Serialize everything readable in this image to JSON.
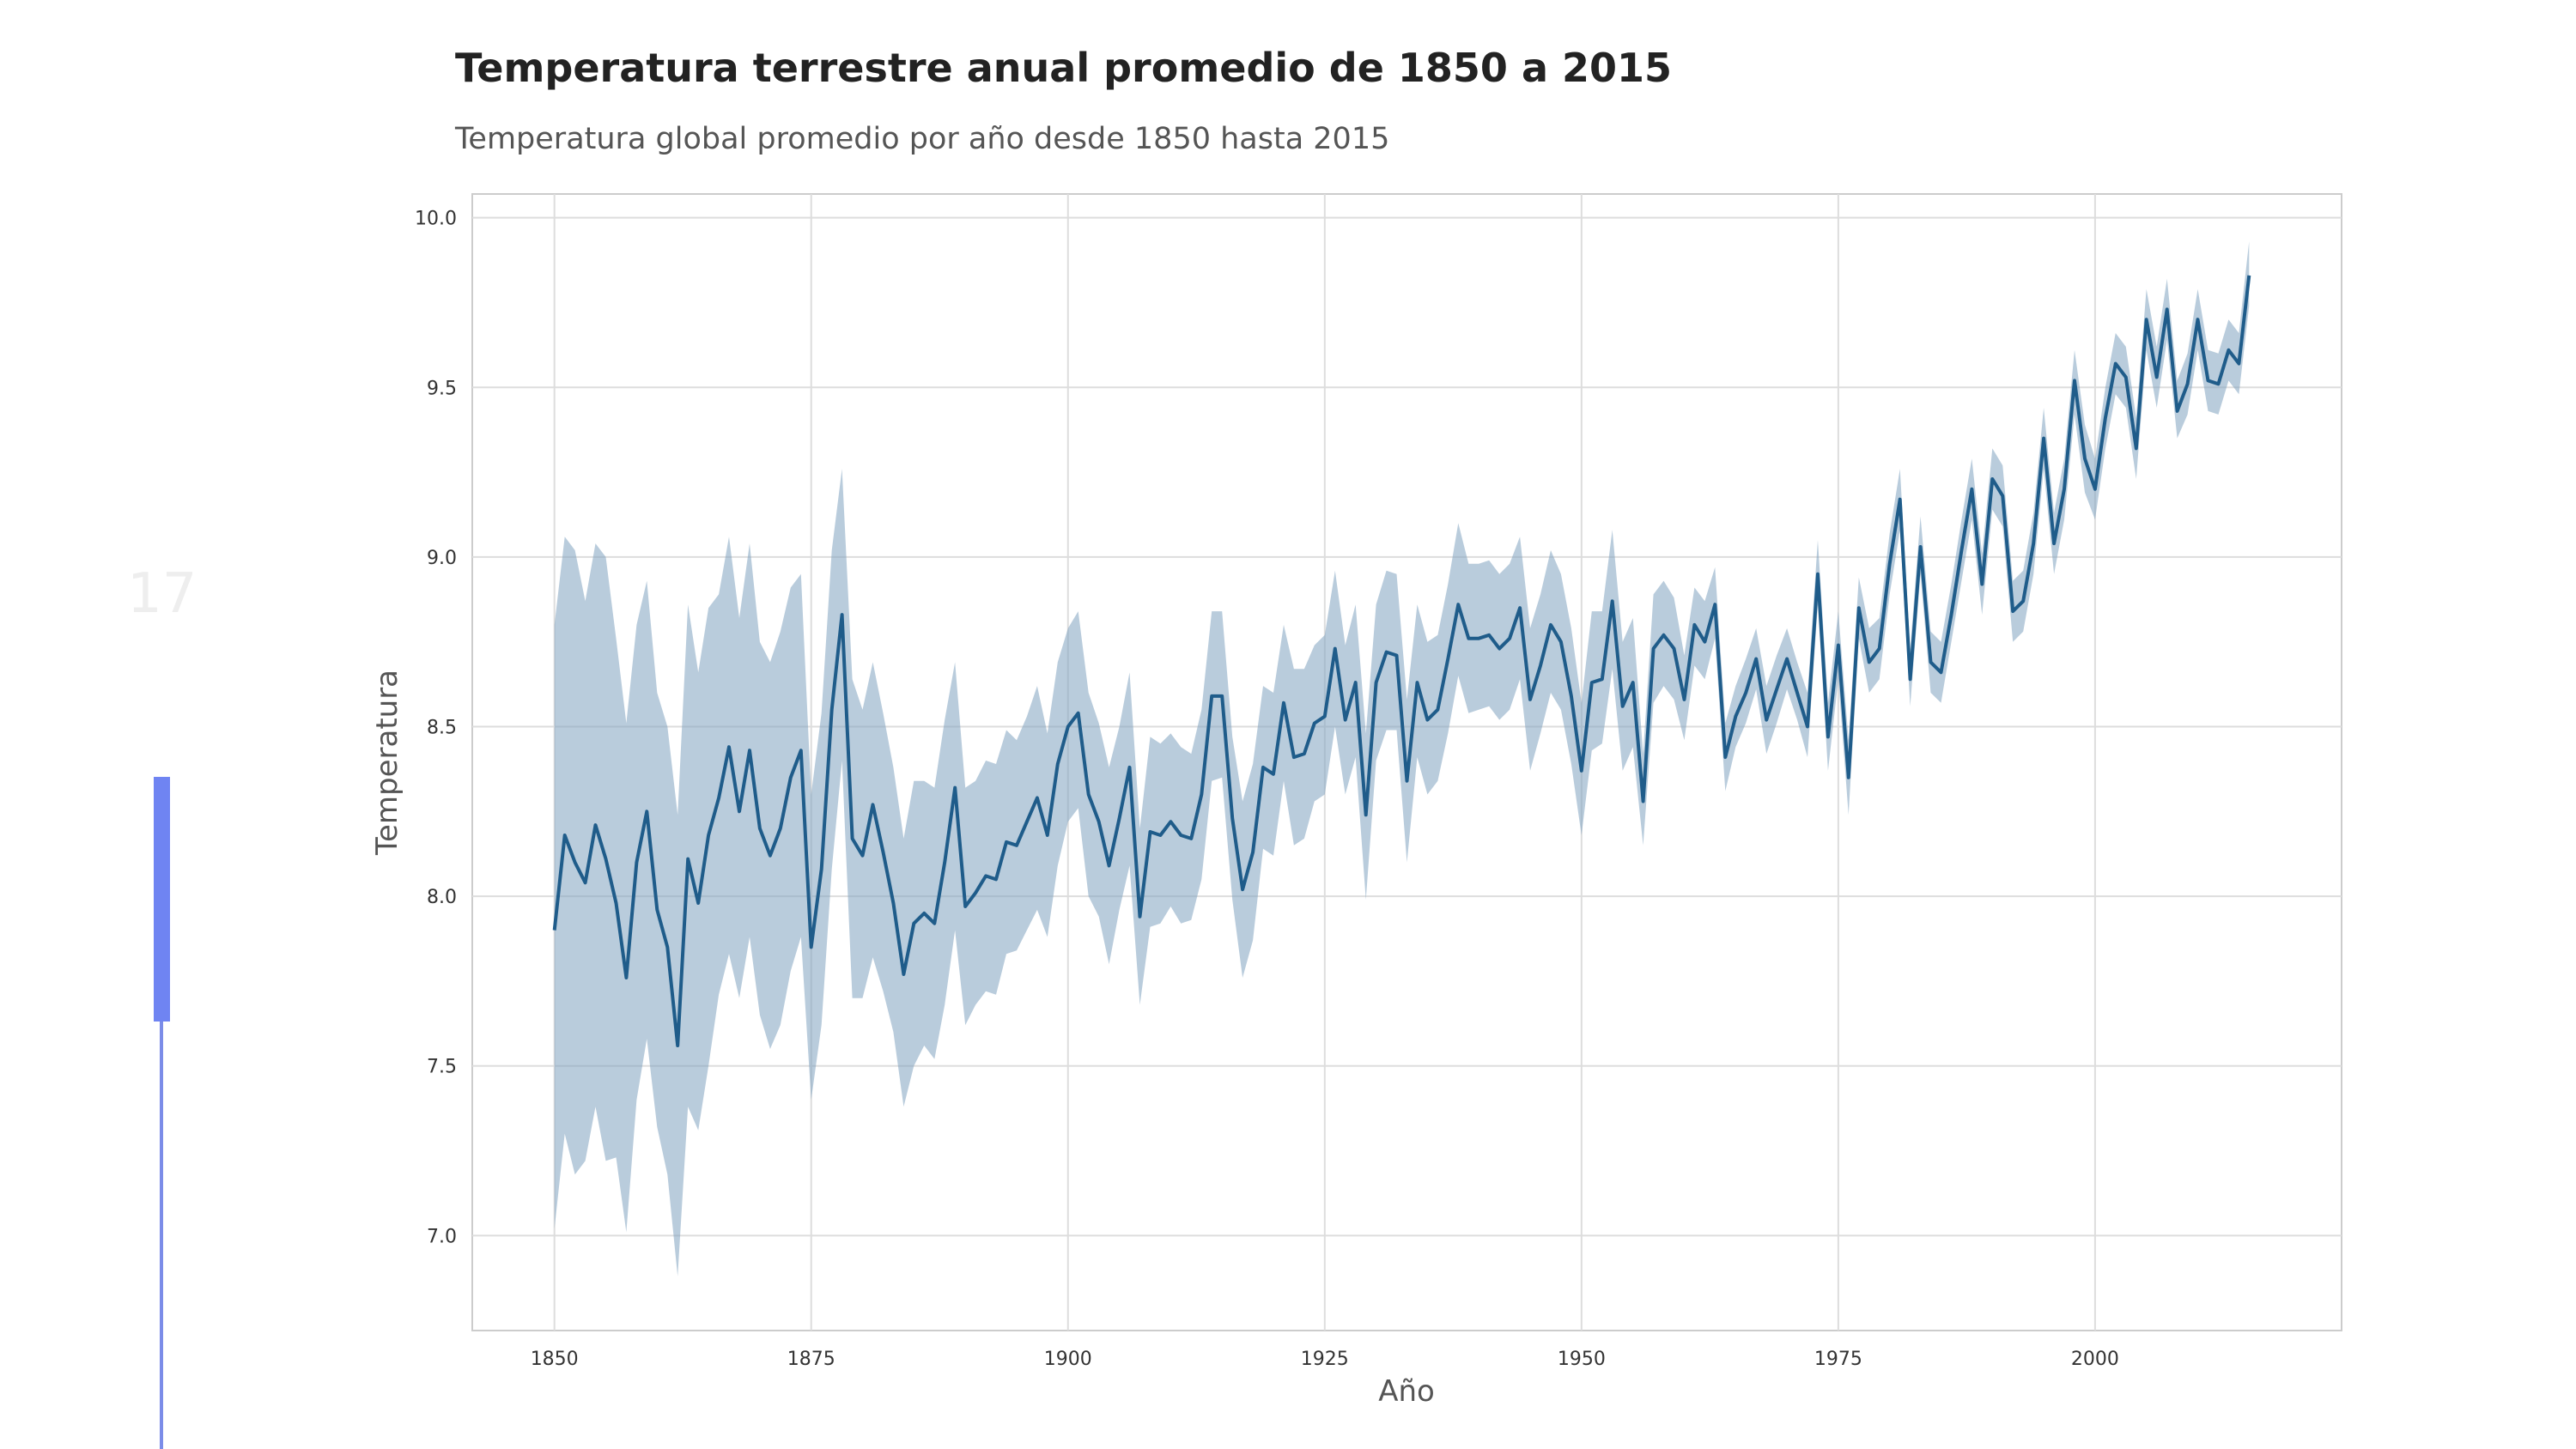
{
  "page_number": "17",
  "progress": {
    "fraction": 0.19
  },
  "colors": {
    "line": "#1f5c8a",
    "band": "#7fa2bf",
    "grid": "#dddddd",
    "frame": "#cccccc",
    "progress": "#6f84f2"
  },
  "chart_data": {
    "type": "line",
    "title": "Temperatura terrestre anual promedio de 1850 a 2015",
    "subtitle": "Temperatura global promedio por año desde 1850 hasta 2015",
    "xlabel": "Año",
    "ylabel": "Temperatura",
    "xlim": [
      1842,
      2024
    ],
    "ylim": [
      6.72,
      10.07
    ],
    "x_ticks": [
      1850,
      1875,
      1900,
      1925,
      1950,
      1975,
      2000
    ],
    "y_ticks": [
      "7.0",
      "7.5",
      "8.0",
      "8.5",
      "9.0",
      "9.5",
      "10.0"
    ],
    "grid": true,
    "confidence_band": true,
    "x": [
      1850,
      1851,
      1852,
      1853,
      1854,
      1855,
      1856,
      1857,
      1858,
      1859,
      1860,
      1861,
      1862,
      1863,
      1864,
      1865,
      1866,
      1867,
      1868,
      1869,
      1870,
      1871,
      1872,
      1873,
      1874,
      1875,
      1876,
      1877,
      1878,
      1879,
      1880,
      1881,
      1882,
      1883,
      1884,
      1885,
      1886,
      1887,
      1888,
      1889,
      1890,
      1891,
      1892,
      1893,
      1894,
      1895,
      1896,
      1897,
      1898,
      1899,
      1900,
      1901,
      1902,
      1903,
      1904,
      1905,
      1906,
      1907,
      1908,
      1909,
      1910,
      1911,
      1912,
      1913,
      1914,
      1915,
      1916,
      1917,
      1918,
      1919,
      1920,
      1921,
      1922,
      1923,
      1924,
      1925,
      1926,
      1927,
      1928,
      1929,
      1930,
      1931,
      1932,
      1933,
      1934,
      1935,
      1936,
      1937,
      1938,
      1939,
      1940,
      1941,
      1942,
      1943,
      1944,
      1945,
      1946,
      1947,
      1948,
      1949,
      1950,
      1951,
      1952,
      1953,
      1954,
      1955,
      1956,
      1957,
      1958,
      1959,
      1960,
      1961,
      1962,
      1963,
      1964,
      1965,
      1966,
      1967,
      1968,
      1969,
      1970,
      1971,
      1972,
      1973,
      1974,
      1975,
      1976,
      1977,
      1978,
      1979,
      1980,
      1981,
      1982,
      1983,
      1984,
      1985,
      1986,
      1987,
      1988,
      1989,
      1990,
      1991,
      1992,
      1993,
      1994,
      1995,
      1996,
      1997,
      1998,
      1999,
      2000,
      2001,
      2002,
      2003,
      2004,
      2005,
      2006,
      2007,
      2008,
      2009,
      2010,
      2011,
      2012,
      2013,
      2014,
      2015
    ],
    "series": [
      {
        "values": [
          7.9,
          8.18,
          8.1,
          8.04,
          8.21,
          8.11,
          7.98,
          7.76,
          8.1,
          8.25,
          7.96,
          7.85,
          7.56,
          8.11,
          7.98,
          8.18,
          8.29,
          8.44,
          8.25,
          8.43,
          8.2,
          8.12,
          8.2,
          8.35,
          8.43,
          7.85,
          8.08,
          8.55,
          8.83,
          8.17,
          8.12,
          8.27,
          8.13,
          7.98,
          7.77,
          7.92,
          7.95,
          7.92,
          8.1,
          8.32,
          7.97,
          8.01,
          8.06,
          8.05,
          8.16,
          8.15,
          8.22,
          8.29,
          8.18,
          8.39,
          8.5,
          8.54,
          8.3,
          8.22,
          8.09,
          8.23,
          8.38,
          7.94,
          8.19,
          8.18,
          8.22,
          8.18,
          8.17,
          8.3,
          8.59,
          8.59,
          8.23,
          8.02,
          8.13,
          8.38,
          8.36,
          8.57,
          8.41,
          8.42,
          8.51,
          8.53,
          8.73,
          8.52,
          8.63,
          8.24,
          8.63,
          8.72,
          8.71,
          8.34,
          8.63,
          8.52,
          8.55,
          8.7,
          8.86,
          8.76,
          8.76,
          8.77,
          8.73,
          8.76,
          8.85,
          8.58,
          8.68,
          8.8,
          8.75,
          8.59,
          8.37,
          8.63,
          8.64,
          8.87,
          8.56,
          8.63,
          8.28,
          8.73,
          8.77,
          8.73,
          8.58,
          8.8,
          8.75,
          8.86,
          8.41,
          8.53,
          8.6,
          8.7,
          8.52,
          8.61,
          8.7,
          8.6,
          8.5,
          8.95,
          8.47,
          8.74,
          8.35,
          8.85,
          8.69,
          8.73,
          8.98,
          9.17,
          8.64,
          9.03,
          8.69,
          8.66,
          8.83,
          9.02,
          9.2,
          8.92,
          9.23,
          9.18,
          8.84,
          8.87,
          9.04,
          9.35,
          9.04,
          9.2,
          9.52,
          9.29,
          9.2,
          9.41,
          9.57,
          9.53,
          9.32,
          9.7,
          9.53,
          9.73,
          9.43,
          9.51,
          9.7,
          9.52,
          9.51,
          9.61,
          9.57,
          9.83
        ],
        "lower": [
          7.02,
          7.3,
          7.18,
          7.22,
          7.38,
          7.22,
          7.23,
          7.01,
          7.4,
          7.58,
          7.32,
          7.18,
          6.88,
          7.38,
          7.31,
          7.5,
          7.71,
          7.83,
          7.7,
          7.88,
          7.65,
          7.55,
          7.62,
          7.78,
          7.88,
          7.4,
          7.62,
          8.08,
          8.4,
          7.7,
          7.7,
          7.82,
          7.72,
          7.6,
          7.38,
          7.5,
          7.56,
          7.52,
          7.68,
          7.9,
          7.62,
          7.68,
          7.72,
          7.71,
          7.83,
          7.84,
          7.9,
          7.96,
          7.88,
          8.09,
          8.22,
          8.26,
          8.0,
          7.94,
          7.8,
          7.96,
          8.09,
          7.68,
          7.91,
          7.92,
          7.97,
          7.92,
          7.93,
          8.05,
          8.34,
          8.35,
          7.99,
          7.76,
          7.87,
          8.14,
          8.12,
          8.34,
          8.15,
          8.17,
          8.28,
          8.3,
          8.5,
          8.3,
          8.41,
          7.99,
          8.4,
          8.49,
          8.49,
          8.1,
          8.41,
          8.3,
          8.34,
          8.48,
          8.65,
          8.54,
          8.55,
          8.56,
          8.52,
          8.55,
          8.64,
          8.37,
          8.48,
          8.6,
          8.55,
          8.39,
          8.18,
          8.43,
          8.45,
          8.67,
          8.37,
          8.44,
          8.15,
          8.57,
          8.62,
          8.58,
          8.46,
          8.68,
          8.64,
          8.76,
          8.31,
          8.44,
          8.51,
          8.61,
          8.42,
          8.51,
          8.61,
          8.52,
          8.41,
          8.86,
          8.37,
          8.64,
          8.24,
          8.76,
          8.6,
          8.64,
          8.89,
          9.08,
          8.56,
          8.95,
          8.6,
          8.57,
          8.75,
          8.93,
          9.11,
          8.83,
          9.14,
          9.09,
          8.75,
          8.78,
          8.95,
          9.26,
          8.95,
          9.11,
          9.42,
          9.19,
          9.11,
          9.32,
          9.48,
          9.44,
          9.23,
          9.61,
          9.44,
          9.64,
          9.35,
          9.42,
          9.61,
          9.43,
          9.42,
          9.52,
          9.48,
          9.74
        ],
        "upper": [
          8.8,
          9.06,
          9.02,
          8.87,
          9.04,
          9.0,
          8.76,
          8.51,
          8.8,
          8.93,
          8.6,
          8.5,
          8.24,
          8.86,
          8.66,
          8.85,
          8.89,
          9.06,
          8.82,
          9.04,
          8.75,
          8.69,
          8.78,
          8.91,
          8.95,
          8.3,
          8.54,
          9.02,
          9.26,
          8.64,
          8.55,
          8.69,
          8.54,
          8.38,
          8.17,
          8.34,
          8.34,
          8.32,
          8.52,
          8.69,
          8.32,
          8.34,
          8.4,
          8.39,
          8.49,
          8.46,
          8.53,
          8.62,
          8.48,
          8.69,
          8.79,
          8.84,
          8.6,
          8.51,
          8.38,
          8.5,
          8.66,
          8.2,
          8.47,
          8.45,
          8.48,
          8.44,
          8.42,
          8.55,
          8.84,
          8.84,
          8.47,
          8.28,
          8.39,
          8.62,
          8.6,
          8.8,
          8.67,
          8.67,
          8.74,
          8.77,
          8.96,
          8.74,
          8.86,
          8.48,
          8.86,
          8.96,
          8.95,
          8.58,
          8.86,
          8.75,
          8.77,
          8.92,
          9.1,
          8.98,
          8.98,
          8.99,
          8.95,
          8.98,
          9.06,
          8.79,
          8.89,
          9.02,
          8.95,
          8.79,
          8.57,
          8.84,
          8.84,
          9.08,
          8.75,
          8.82,
          8.42,
          8.89,
          8.93,
          8.88,
          8.71,
          8.91,
          8.87,
          8.97,
          8.51,
          8.62,
          8.7,
          8.79,
          8.62,
          8.71,
          8.79,
          8.69,
          8.6,
          9.05,
          8.57,
          8.84,
          8.46,
          8.94,
          8.79,
          8.82,
          9.07,
          9.26,
          8.73,
          9.12,
          8.78,
          8.75,
          8.92,
          9.11,
          9.29,
          9.01,
          9.32,
          9.27,
          8.93,
          8.96,
          9.13,
          9.44,
          9.13,
          9.29,
          9.61,
          9.39,
          9.29,
          9.5,
          9.66,
          9.62,
          9.41,
          9.79,
          9.62,
          9.82,
          9.52,
          9.6,
          9.79,
          9.61,
          9.6,
          9.7,
          9.66,
          9.93
        ]
      }
    ]
  }
}
